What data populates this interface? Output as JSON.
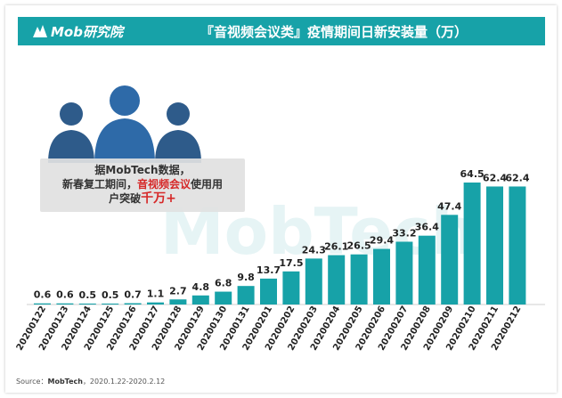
{
  "header": {
    "logo_text": "Mob研究院",
    "title": "『音视频会议类』疫情期间日新安装量（万）"
  },
  "callout": {
    "line1": "据MobTech数据，",
    "line2_pre": "新春复工期间，",
    "line2_em": "音视频会议",
    "line2_post": "使用用",
    "line3_pre": "户突破",
    "line3_em": "千万+"
  },
  "watermark": "MobTech",
  "source": {
    "label": "Source：",
    "org": "MobTech",
    "range": "，2020.1.22-2020.2.12"
  },
  "colors": {
    "header": "#17a2a8",
    "bar": "#17a2a8",
    "people": "#2e5b8a",
    "highlight": "#d62828"
  },
  "chart_data": {
    "type": "bar",
    "categories": [
      "20200122",
      "20200123",
      "20200124",
      "20200125",
      "20200126",
      "20200127",
      "20200128",
      "20200129",
      "20200130",
      "20200131",
      "20200201",
      "20200202",
      "20200203",
      "20200204",
      "20200205",
      "20200206",
      "20200207",
      "20200208",
      "20200209",
      "20200210",
      "20200211",
      "20200212"
    ],
    "values": [
      0.6,
      0.6,
      0.5,
      0.5,
      0.7,
      1.1,
      2.7,
      4.8,
      6.8,
      9.8,
      13.7,
      17.5,
      24.3,
      26.1,
      26.5,
      29.4,
      33.2,
      36.4,
      47.4,
      64.5,
      62.4,
      62.4
    ],
    "title": "『音视频会议类』疫情期间日新安装量（万）",
    "ylim": [
      0,
      70
    ]
  }
}
